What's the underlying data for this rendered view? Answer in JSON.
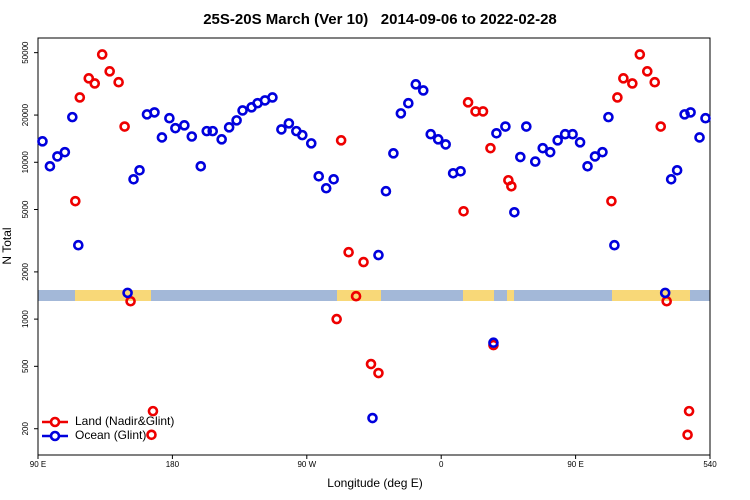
{
  "chart_data": {
    "type": "scatter",
    "title": "25S-20S March (Ver 10)   2014-09-06 to 2022-02-28",
    "x_label": "Longitude (deg E)",
    "y_label": "N Total",
    "xlim": [
      90,
      540
    ],
    "xticks": [
      {
        "value": 90,
        "label": "90 E"
      },
      180,
      {
        "value": 270,
        "label": "90 W"
      },
      {
        "value": 360,
        "label": "0"
      },
      {
        "value": 450,
        "label": "90 E"
      },
      540
    ],
    "ylim": [
      136,
      62000
    ],
    "y_scale": "log",
    "yticks": [
      200,
      500,
      1000,
      2000,
      5000,
      10000,
      20000,
      50000
    ],
    "legend": "lower left",
    "series": [
      {
        "name": "Land (Nadir&Glint)",
        "color": "#ee0000",
        "x": [
          115,
          118,
          124,
          128,
          133,
          138,
          144,
          148,
          152,
          167,
          166,
          290,
          293,
          298,
          303,
          308,
          313,
          318,
          375,
          378,
          383,
          388,
          393,
          395,
          405,
          407,
          474,
          478,
          482,
          488,
          493,
          498,
          503,
          507,
          511,
          526,
          525
        ],
        "values": [
          5650,
          25900,
          34300,
          31800,
          48700,
          38000,
          32400,
          16900,
          1300,
          259,
          183,
          1000,
          13800,
          2670,
          1400,
          2310,
          517,
          453,
          4870,
          24100,
          21100,
          21100,
          12300,
          683,
          7680,
          7030,
          5650,
          25900,
          34300,
          31800,
          48700,
          38000,
          32400,
          16900,
          1300,
          259,
          183
        ]
      },
      {
        "name": "Ocean (Glint)",
        "color": "#0000dd",
        "x": [
          93,
          98,
          103,
          108,
          113,
          117,
          150,
          154,
          158,
          163,
          168,
          173,
          178,
          182,
          188,
          193,
          199,
          203,
          207,
          213,
          218,
          223,
          227,
          233,
          237,
          242,
          247,
          253,
          258,
          263,
          267,
          273,
          278,
          283,
          288,
          314,
          318,
          323,
          328,
          333,
          338,
          343,
          348,
          353,
          358,
          363,
          368,
          373,
          395,
          397,
          403,
          409,
          413,
          417,
          423,
          428,
          433,
          438,
          443,
          448,
          453,
          458,
          463,
          468,
          472,
          476,
          510,
          514,
          518,
          523,
          527,
          533,
          537
        ],
        "values": [
          13600,
          9430,
          10900,
          11600,
          19400,
          2960,
          1470,
          7790,
          8890,
          20200,
          20800,
          14400,
          19100,
          16500,
          17200,
          14600,
          9430,
          15800,
          15800,
          14000,
          16700,
          18500,
          21400,
          22400,
          23800,
          24800,
          25900,
          16200,
          17700,
          15800,
          14900,
          13200,
          8140,
          6830,
          7790,
          234,
          2560,
          6540,
          11400,
          20500,
          23800,
          31400,
          28700,
          15100,
          14000,
          13000,
          8510,
          8760,
          707,
          15300,
          16900,
          4800,
          10800,
          16900,
          10100,
          12300,
          11600,
          13800,
          15100,
          15100,
          13400,
          9430,
          10900,
          11600,
          19400,
          2960,
          1470,
          7790,
          8890,
          20200,
          20800,
          14400,
          19100
        ]
      }
    ]
  }
}
